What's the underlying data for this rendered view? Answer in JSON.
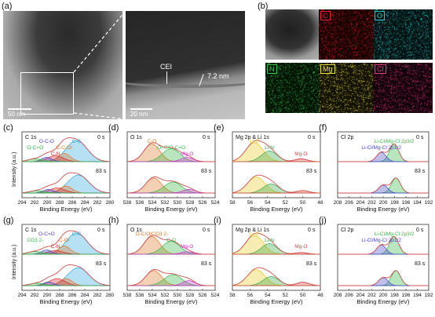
{
  "figure": {
    "panel_letters": [
      "(a)",
      "(b)",
      "(c)",
      "(d)",
      "(e)",
      "(f)",
      "(g)",
      "(h)",
      "(i)",
      "(j)"
    ],
    "tem": {
      "scale_left": "50 nm",
      "scale_right": "20 nm",
      "cei_label": "CEI",
      "thickness": "7.2 nm"
    },
    "eds": {
      "elements": [
        {
          "name": "C",
          "color": "#e0202a"
        },
        {
          "name": "O",
          "color": "#2ec8c8"
        },
        {
          "name": "N",
          "color": "#36c456"
        },
        {
          "name": "Mg",
          "color": "#e8e040"
        },
        {
          "name": "Cl",
          "color": "#e8388a"
        }
      ]
    },
    "ylabel": "Intensity (a.u.)",
    "xlabel": "Binding Energy (eV)",
    "time0": "0 s",
    "time83": "83 s"
  },
  "chart_data": [
    {
      "panel": "(c)",
      "type": "line",
      "core": "C 1s",
      "x_ticks": [
        294,
        292,
        290,
        288,
        286,
        284,
        282,
        280
      ],
      "peaks": [
        "C-C",
        "C-C-O/",
        "C-N",
        "O-C-O",
        "O-C=O"
      ]
    },
    {
      "panel": "(d)",
      "type": "line",
      "core": "O 1s",
      "x_ticks": [
        538,
        536,
        534,
        532,
        530,
        528,
        526,
        524
      ],
      "peaks": [
        "C-O",
        "O=C/O-C=O",
        "Mg-O"
      ]
    },
    {
      "panel": "(e)",
      "type": "line",
      "core": "Mg 2p & Li 1s",
      "x_ticks": [
        58,
        56,
        54,
        52,
        50,
        48
      ],
      "peaks": [
        "Li-O",
        "Li-N",
        "Mg-O"
      ]
    },
    {
      "panel": "(f)",
      "type": "line",
      "core": "Cl 2p",
      "x_ticks": [
        208,
        206,
        204,
        202,
        200,
        198,
        196,
        194,
        192
      ],
      "peaks": [
        "Li-Cl/Mg-Cl 2p3/2",
        "Li-Cl/Mg-Cl 2p1/2"
      ]
    },
    {
      "panel": "(g)",
      "type": "line",
      "core": "C 1s",
      "x_ticks": [
        294,
        292,
        290,
        288,
        286,
        284,
        282,
        280
      ],
      "peaks": [
        "C-C",
        "C-O/",
        "C-N",
        "O-C=O",
        "CO3 2-"
      ]
    },
    {
      "panel": "(h)",
      "type": "line",
      "core": "O 1s",
      "x_ticks": [
        538,
        536,
        534,
        532,
        530,
        528,
        526,
        524
      ],
      "peaks": [
        "O-C/O/CO3 2-",
        "C-O",
        "Mg-O"
      ]
    },
    {
      "panel": "(i)",
      "type": "line",
      "core": "Mg 2p & Li 1s",
      "x_ticks": [
        58,
        56,
        54,
        52,
        50,
        48
      ],
      "peaks": [
        "Li-O",
        "Li-N",
        "Mg-O"
      ]
    },
    {
      "panel": "(j)",
      "type": "line",
      "core": "Cl 2p",
      "x_ticks": [
        208,
        206,
        204,
        202,
        200,
        198,
        196,
        194,
        192
      ],
      "peaks": [
        "Li-Cl/Mg-Cl 2p3/2",
        "Li-Cl/Mg-Cl 2p1/2"
      ]
    }
  ]
}
